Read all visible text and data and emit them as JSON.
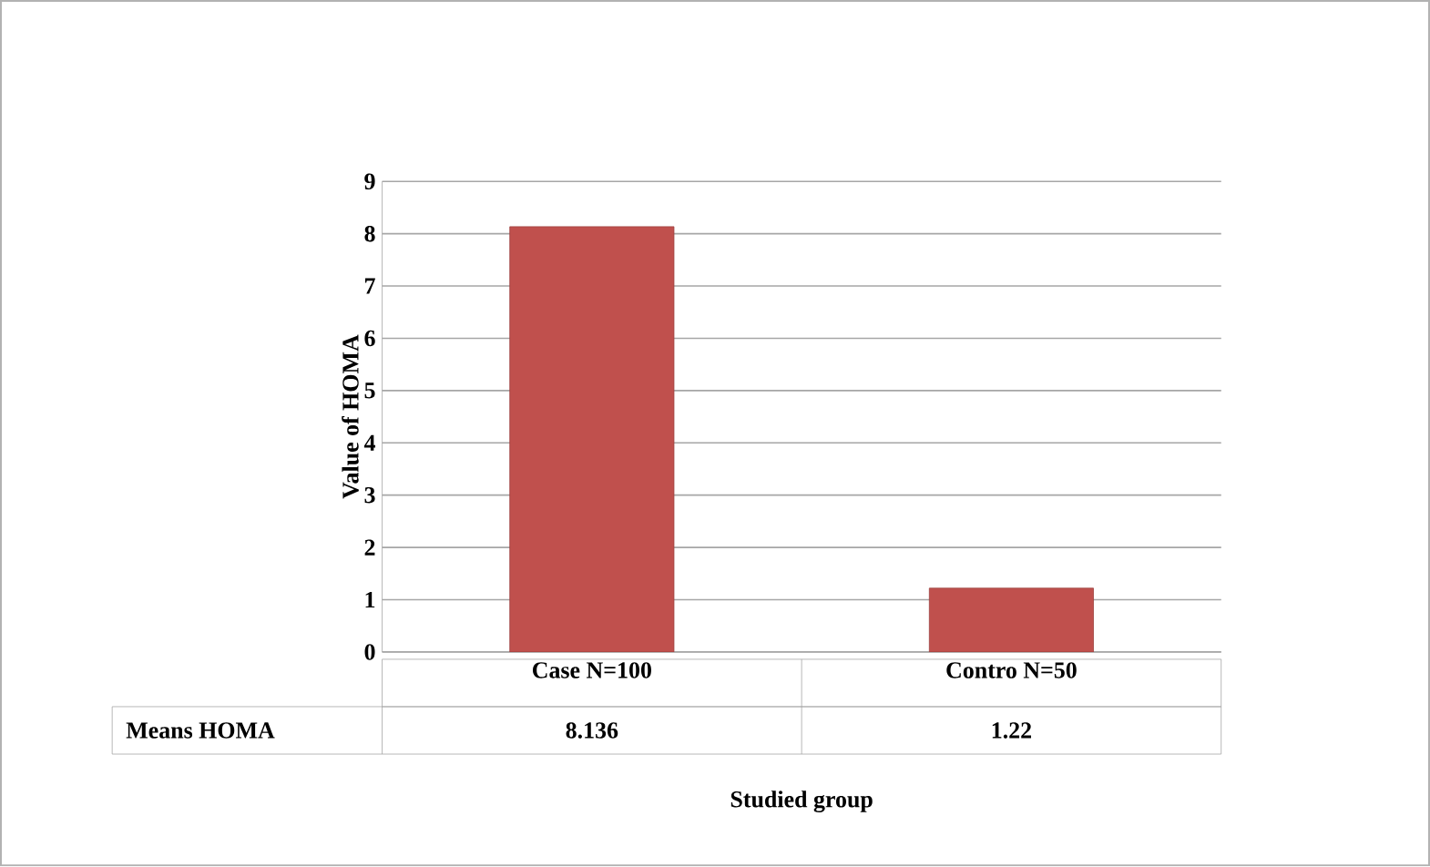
{
  "chart_data": {
    "type": "bar",
    "xlabel": "Studied group",
    "ylabel": "Value of HOMA",
    "categories": [
      "Case N=100",
      "Contro N=50"
    ],
    "series": [
      {
        "name": "Means HOMA",
        "color": "#c0504d",
        "values": [
          8.136,
          1.22
        ]
      }
    ],
    "ylim": [
      0,
      9
    ],
    "yticks": [
      0,
      1,
      2,
      3,
      4,
      5,
      6,
      7,
      8,
      9
    ],
    "grid": "y",
    "data_labels": true
  }
}
